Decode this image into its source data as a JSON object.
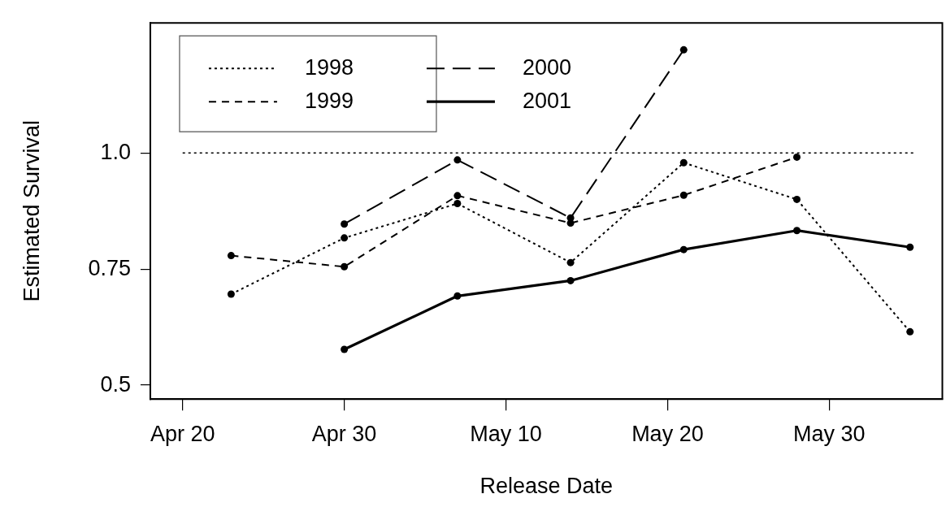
{
  "chart_data": {
    "type": "line",
    "xlabel": "Release Date",
    "ylabel": "Estimated Survival",
    "xlim": [
      "--04-18",
      "--06-06"
    ],
    "ylim": [
      0.47,
      1.28
    ],
    "xticks": [
      {
        "value": "--04-20",
        "label": "Apr 20"
      },
      {
        "value": "--04-30",
        "label": "Apr 30"
      },
      {
        "value": "--05-10",
        "label": "May 10"
      },
      {
        "value": "--05-20",
        "label": "May 20"
      },
      {
        "value": "--05-30",
        "label": "May 30"
      }
    ],
    "yticks": [
      {
        "value": 0.5,
        "label": "0.5"
      },
      0.75,
      {
        "value": 1,
        "label": "1.0"
      }
    ],
    "grid": false,
    "legend": "top left",
    "marker": "circle",
    "ref_lines": [
      {
        "axis": "y",
        "value": 1,
        "line_style": "dotted",
        "color": "#000000"
      }
    ],
    "series": [
      {
        "name": "1998",
        "color": "#000000",
        "line_style": "dotted",
        "x": [
          "--04-23",
          "--04-30",
          "--05-07",
          "--05-14",
          "--05-21",
          "--05-28",
          "--06-04"
        ],
        "values": [
          0.696,
          0.817,
          0.891,
          0.764,
          0.979,
          0.9,
          0.615
        ]
      },
      {
        "name": "1999",
        "color": "#000000",
        "line_style": "dashed",
        "x": [
          "--04-23",
          "--04-30",
          "--05-07",
          "--05-14",
          "--05-21",
          "--05-28"
        ],
        "values": [
          0.779,
          0.755,
          0.908,
          0.849,
          0.909,
          0.991
        ]
      },
      {
        "name": "2000",
        "color": "#000000",
        "line_style": "dashed",
        "x": [
          "--04-30",
          "--05-07",
          "--05-14",
          "--05-21"
        ],
        "values": [
          0.847,
          0.985,
          0.86,
          1.222
        ]
      },
      {
        "name": "2001",
        "color": "#000000",
        "line_style": "solid",
        "x": [
          "--04-30",
          "--05-07",
          "--05-14",
          "--05-21",
          "--05-28",
          "--06-04"
        ],
        "values": [
          0.577,
          0.692,
          0.725,
          0.792,
          0.833,
          0.797
        ]
      }
    ]
  }
}
